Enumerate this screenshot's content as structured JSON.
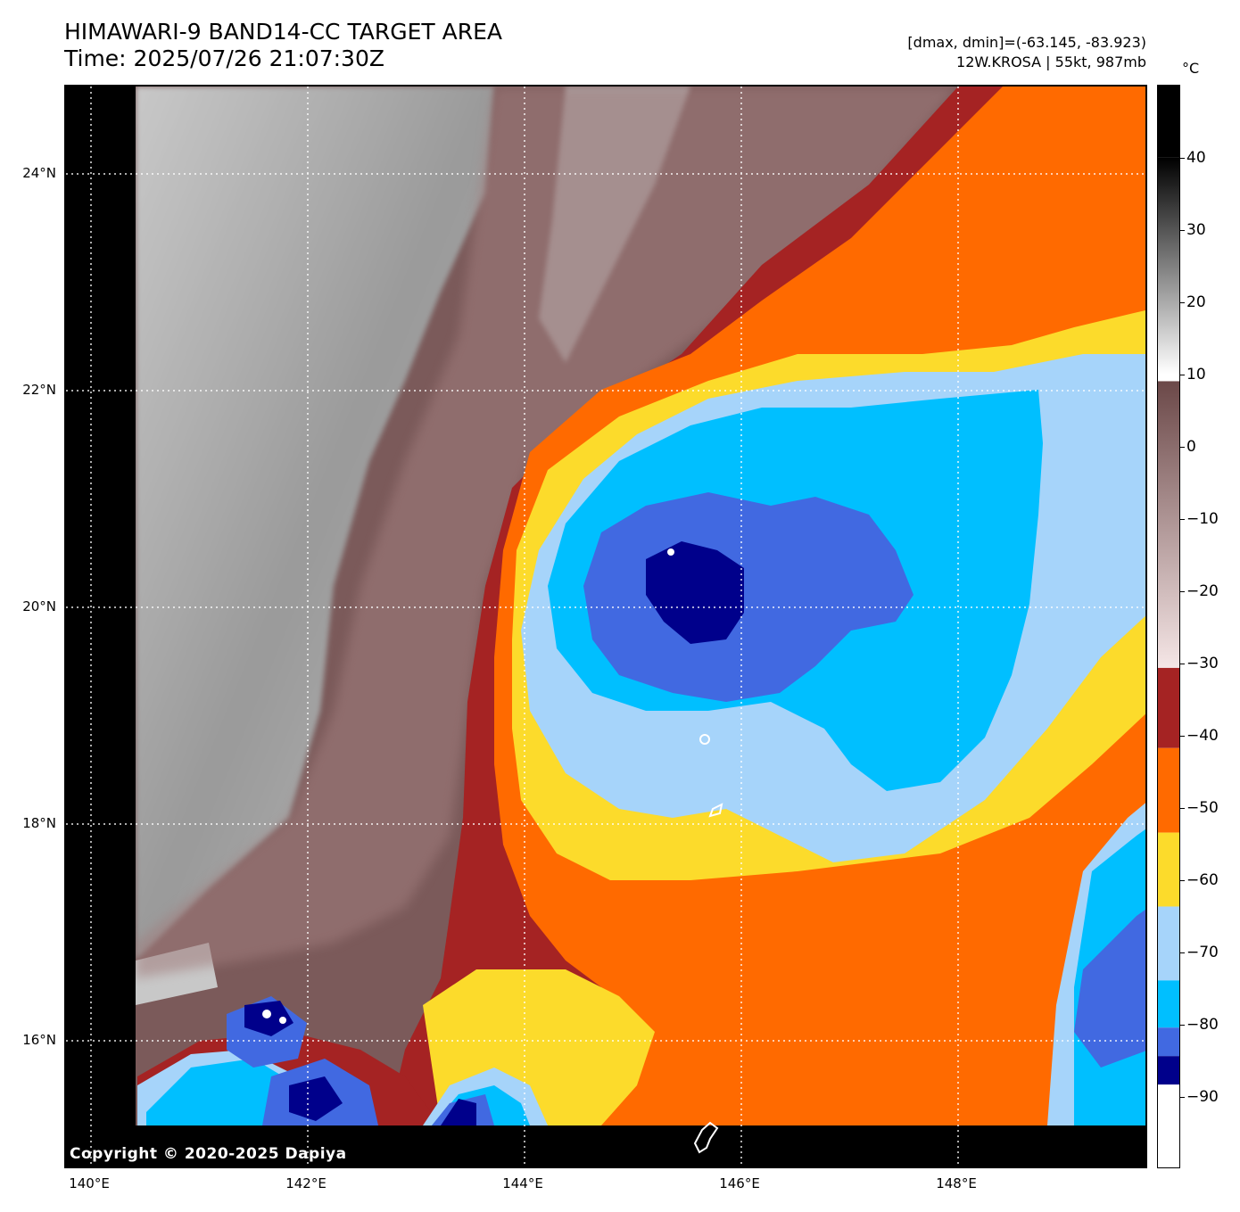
{
  "header": {
    "title_line1": "HIMAWARI-9 BAND14-CC TARGET AREA",
    "title_line2": "Time: 2025/07/26 21:07:30Z",
    "info_line1": "[dmax, dmin]=(-63.145, -83.923)",
    "info_line2": "12W.KROSA | 55kt, 987mb"
  },
  "map": {
    "lat_labels": [
      "24°N",
      "22°N",
      "20°N",
      "18°N",
      "16°N"
    ],
    "lon_labels": [
      "140°E",
      "142°E",
      "144°E",
      "146°E",
      "148°E"
    ],
    "copyright": "Copyright © 2020-2025 Dapiya"
  },
  "colorbar": {
    "unit": "°C",
    "tick_labels": [
      "40",
      "30",
      "20",
      "10",
      "0",
      "−10",
      "−20",
      "−30",
      "−40",
      "−50",
      "−60",
      "−70",
      "−80",
      "−90"
    ],
    "range": [
      -100,
      50
    ],
    "bands": [
      {
        "from": 50,
        "to": 40,
        "color": "#000000"
      },
      {
        "from": 40,
        "to": 10,
        "color": "gradient-black-white"
      },
      {
        "from": 10,
        "to": 9,
        "color": "#ffffff"
      },
      {
        "from": 9,
        "to": -30,
        "color": "gradient-brown-pink"
      },
      {
        "from": -31,
        "to": -41,
        "color": "#a52323"
      },
      {
        "from": -41,
        "to": -53,
        "color": "#ff6a00"
      },
      {
        "from": -53,
        "to": -63,
        "color": "#fcdb2b"
      },
      {
        "from": -63,
        "to": -73,
        "color": "#a6d4fa"
      },
      {
        "from": -73,
        "to": -80,
        "color": "#00bfff"
      },
      {
        "from": -80,
        "to": -84,
        "color": "#4169e1"
      },
      {
        "from": -84,
        "to": -88,
        "color": "#00008b"
      },
      {
        "from": -88,
        "to": -100,
        "color": "#ffffff"
      }
    ]
  },
  "colors": {
    "warm_cloud_brown": "#7b5a5a",
    "dark_red": "#a52323",
    "orange": "#ff6a00",
    "yellow": "#fcdb2b",
    "light_blue": "#a6d4fa",
    "cyan": "#00bfff",
    "royal_blue": "#4169e1",
    "navy": "#00008b"
  }
}
